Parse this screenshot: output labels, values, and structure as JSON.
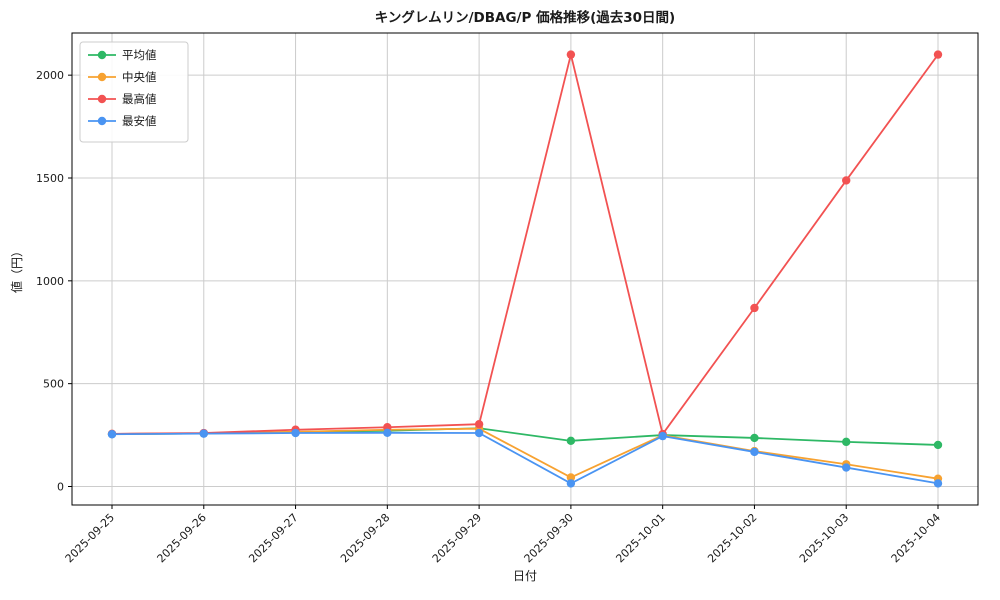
{
  "figure": {
    "background": "#ffffff"
  },
  "chart_data": {
    "type": "line",
    "title": "キングレムリン/DBAG/P 価格推移(過去30日間)",
    "xlabel": "日付",
    "ylabel": "値（円）",
    "categories": [
      "2025-09-25",
      "2025-09-26",
      "2025-09-27",
      "2025-09-28",
      "2025-09-29",
      "2025-09-30",
      "2025-10-01",
      "2025-10-02",
      "2025-10-03",
      "2025-10-04"
    ],
    "series": [
      {
        "name": "平均値",
        "id": "average",
        "color": "#2eb865",
        "marker": "circle",
        "values": [
          255,
          258,
          265,
          271,
          283,
          222,
          250,
          236,
          217,
          202
        ]
      },
      {
        "name": "中央値",
        "id": "median",
        "color": "#f7a231",
        "marker": "circle",
        "values": [
          255,
          258,
          266,
          276,
          281,
          44,
          249,
          172,
          108,
          38
        ]
      },
      {
        "name": "最高値",
        "id": "max",
        "color": "#f25252",
        "marker": "circle",
        "values": [
          256,
          260,
          276,
          288,
          303,
          2100,
          255,
          868,
          1488,
          2100
        ]
      },
      {
        "name": "最安値",
        "id": "min",
        "color": "#4a94f2",
        "marker": "circle",
        "values": [
          254,
          257,
          260,
          261,
          260,
          15,
          245,
          168,
          92,
          15
        ]
      }
    ],
    "yticks": [
      0,
      500,
      1000,
      1500,
      2000
    ],
    "ylim": [
      -90,
      2205
    ],
    "grid": true,
    "grid_color": "#cccccc",
    "legend_position": "upper left"
  }
}
